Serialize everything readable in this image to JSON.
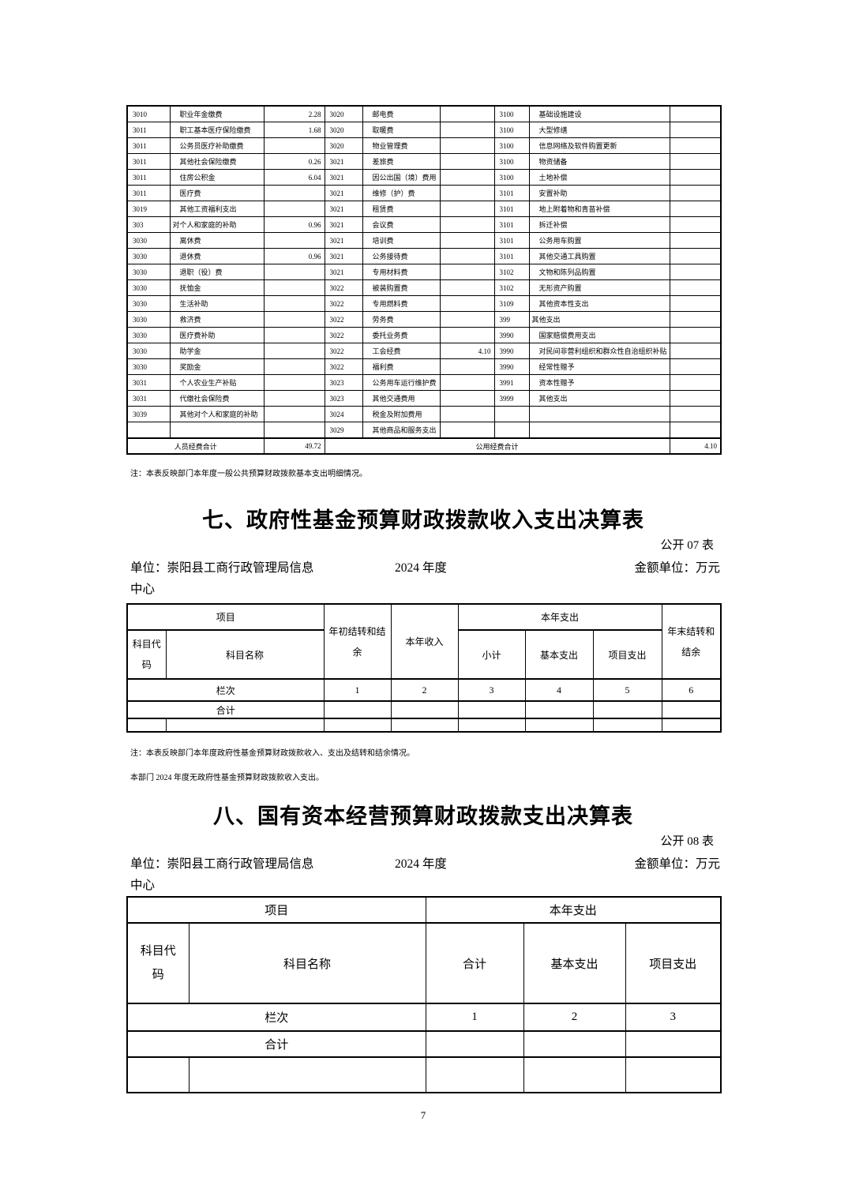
{
  "page_number": "7",
  "colors": {
    "text": "#000000",
    "border": "#000000",
    "background": "#ffffff"
  },
  "basic_table": {
    "note": "注：本表反映部门本年度一般公共预算财政拨款基本支出明细情况。",
    "summary": {
      "left_label": "人员经费合计",
      "left_value": "49.72",
      "right_label": "公用经费合计",
      "right_value": "4.10"
    },
    "rows": [
      [
        "3010",
        "职业年金缴费",
        "2.28",
        "3020",
        "邮电费",
        "",
        "3100",
        "基础设施建设",
        ""
      ],
      [
        "3011",
        "职工基本医疗保险缴费",
        "1.68",
        "3020",
        "取暖费",
        "",
        "3100",
        "大型修缮",
        ""
      ],
      [
        "3011",
        "公务员医疗补助缴费",
        "",
        "3020",
        "物业管理费",
        "",
        "3100",
        "信息网络及软件购置更新",
        ""
      ],
      [
        "3011",
        "其他社会保险缴费",
        "0.26",
        "3021",
        "差旅费",
        "",
        "3100",
        "物资储备",
        ""
      ],
      [
        "3011",
        "住房公积金",
        "6.04",
        "3021",
        "因公出国（境）费用",
        "",
        "3100",
        "土地补偿",
        ""
      ],
      [
        "3011",
        "医疗费",
        "",
        "3021",
        "维修（护）费",
        "",
        "3101",
        "安置补助",
        ""
      ],
      [
        "3019",
        "其他工资福利支出",
        "",
        "3021",
        "租赁费",
        "",
        "3101",
        "地上附着物和青苗补偿",
        ""
      ],
      [
        "303",
        "对个人和家庭的补助",
        "0.96",
        "3021",
        "会议费",
        "",
        "3101",
        "拆迁补偿",
        ""
      ],
      [
        "3030",
        "离休费",
        "",
        "3021",
        "培训费",
        "",
        "3101",
        "公务用车购置",
        ""
      ],
      [
        "3030",
        "退休费",
        "0.96",
        "3021",
        "公务接待费",
        "",
        "3101",
        "其他交通工具购置",
        ""
      ],
      [
        "3030",
        "退职（役）费",
        "",
        "3021",
        "专用材料费",
        "",
        "3102",
        "文物和陈列品购置",
        ""
      ],
      [
        "3030",
        "抚恤金",
        "",
        "3022",
        "被装购置费",
        "",
        "3102",
        "无形资产购置",
        ""
      ],
      [
        "3030",
        "生活补助",
        "",
        "3022",
        "专用燃料费",
        "",
        "3109",
        "其他资本性支出",
        ""
      ],
      [
        "3030",
        "救济费",
        "",
        "3022",
        "劳务费",
        "",
        "399",
        "其他支出",
        ""
      ],
      [
        "3030",
        "医疗费补助",
        "",
        "3022",
        "委托业务费",
        "",
        "3990",
        "国家赔偿费用支出",
        ""
      ],
      [
        "3030",
        "助学金",
        "",
        "3022",
        "工会经费",
        "4.10",
        "3990",
        "对民间非营利组织和群众性自治组织补贴",
        ""
      ],
      [
        "3030",
        "奖励金",
        "",
        "3022",
        "福利费",
        "",
        "3990",
        "经常性赠予",
        ""
      ],
      [
        "3031",
        "个人农业生产补贴",
        "",
        "3023",
        "公务用车运行维护费",
        "",
        "3991",
        "资本性赠予",
        ""
      ],
      [
        "3031",
        "代缴社会保险费",
        "",
        "3023",
        "其他交通费用",
        "",
        "3999",
        "其他支出",
        ""
      ],
      [
        "3039",
        "其他对个人和家庭的补助",
        "",
        "3024",
        "税金及附加费用",
        "",
        "",
        "",
        ""
      ],
      [
        "",
        "",
        "",
        "3029",
        "其他商品和服务支出",
        "",
        "",
        "",
        ""
      ]
    ]
  },
  "section7": {
    "title": "七、政府性基金预算财政拨款收入支出决算表",
    "sheet_label": "公开 07 表",
    "unit_label": "单位：崇阳县工商行政管理局信息",
    "unit_label_wrap": "中心",
    "year_label": "2024 年度",
    "amount_unit_label": "金额单位：万元",
    "table": {
      "project": "项目",
      "subject_code": "科目代码",
      "subject_name": "科目名称",
      "begin_balance": "年初结转和结余",
      "current_income": "本年收入",
      "current_expenditure": "本年支出",
      "subtotal": "小计",
      "basic_expenditure": "基本支出",
      "project_expenditure": "项目支出",
      "end_balance": "年末结转和结余",
      "column_label": "栏次",
      "column_numbers": [
        "1",
        "2",
        "3",
        "4",
        "5",
        "6"
      ],
      "total_label": "合计"
    },
    "note": "注：本表反映部门本年度政府性基金预算财政拨款收入、支出及结转和结余情况。",
    "extra_note": "本部门 2024 年度无政府性基金预算财政拨款收入支出。"
  },
  "section8": {
    "title": "八、国有资本经营预算财政拨款支出决算表",
    "sheet_label": "公开 08 表",
    "unit_label": "单位：崇阳县工商行政管理局信息",
    "unit_label_wrap": "中心",
    "year_label": "2024 年度",
    "amount_unit_label": "金额单位：万元",
    "table": {
      "project": "项目",
      "current_expenditure": "本年支出",
      "subject_code": "科目代码",
      "subject_name": "科目名称",
      "total": "合计",
      "basic_expenditure": "基本支出",
      "project_expenditure": "项目支出",
      "column_label": "栏次",
      "column_numbers": [
        "1",
        "2",
        "3"
      ],
      "total_label": "合计"
    }
  }
}
